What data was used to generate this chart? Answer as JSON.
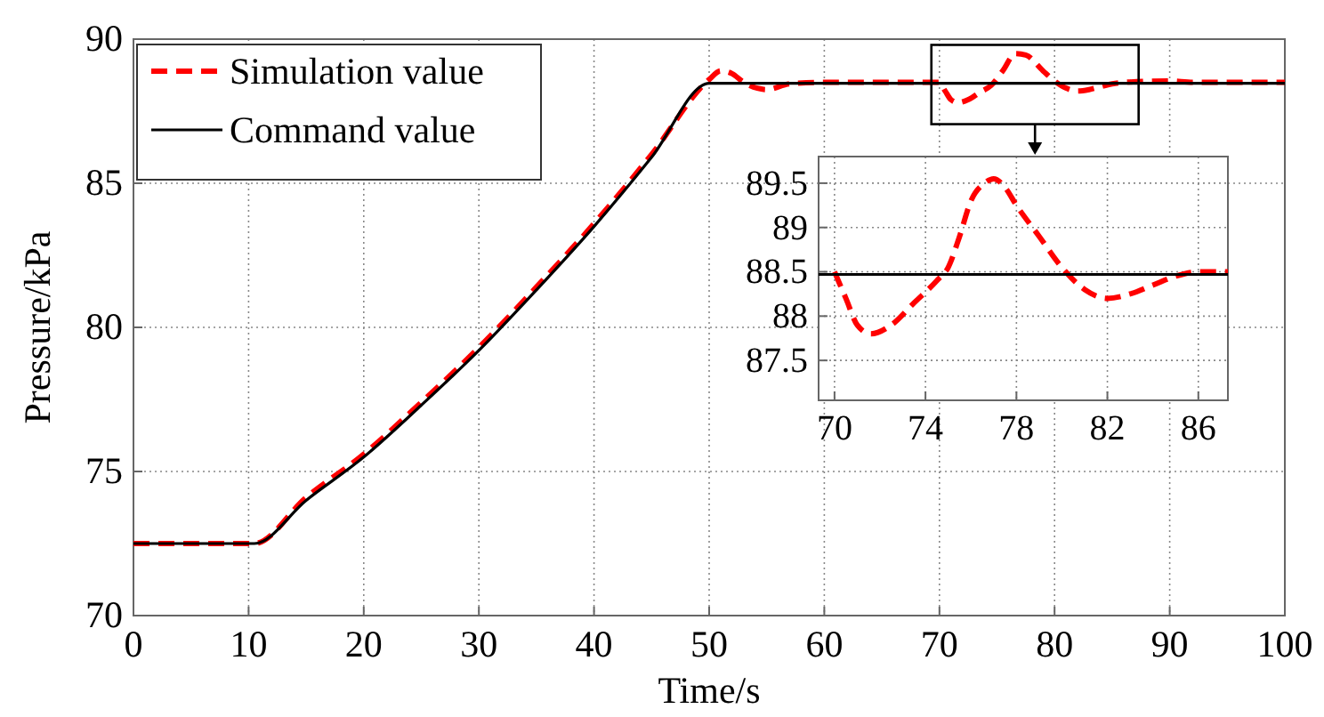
{
  "chart_data": [
    {
      "type": "line",
      "xlabel": "Time/s",
      "ylabel": "Pressure/kPa",
      "xlim": [
        0,
        100
      ],
      "ylim": [
        70,
        90
      ],
      "xticks": [
        0,
        10,
        20,
        30,
        40,
        50,
        60,
        70,
        80,
        90,
        100
      ],
      "yticks": [
        70,
        75,
        80,
        85,
        90
      ],
      "grid": true,
      "legend": "top left",
      "series": [
        {
          "name": "Simulation value",
          "color": "#ff0000",
          "line_style": "dashed",
          "x": [
            0,
            10.5,
            15,
            20,
            25,
            30,
            35,
            40,
            45,
            50,
            51,
            52,
            53,
            55,
            57,
            60,
            70,
            70.5,
            71,
            71.6,
            72.5,
            73.5,
            74.5,
            75.5,
            76.6,
            77.5,
            79,
            80,
            81,
            82,
            83,
            84,
            85,
            86,
            90,
            92,
            100
          ],
          "values": [
            72.5,
            72.5,
            74.1,
            75.6,
            77.4,
            79.3,
            81.4,
            83.6,
            86.0,
            88.6,
            88.9,
            88.8,
            88.5,
            88.25,
            88.45,
            88.5,
            88.5,
            88.2,
            87.9,
            87.8,
            87.9,
            88.15,
            88.4,
            88.9,
            89.5,
            89.45,
            88.9,
            88.55,
            88.3,
            88.2,
            88.25,
            88.35,
            88.45,
            88.5,
            88.55,
            88.5,
            88.5
          ]
        },
        {
          "name": "Command value",
          "color": "#000000",
          "line_style": "solid",
          "x": [
            0,
            10.5,
            15,
            20,
            25,
            30,
            35,
            40,
            45,
            50,
            100
          ],
          "values": [
            72.5,
            72.5,
            74.0,
            75.5,
            77.3,
            79.2,
            81.3,
            83.5,
            85.9,
            88.47,
            88.47
          ]
        }
      ]
    },
    {
      "type": "line",
      "xlim": [
        69.3,
        87.3
      ],
      "ylim": [
        87.05,
        89.8
      ],
      "xticks": [
        70,
        74,
        78,
        82,
        86
      ],
      "yticks": [
        87.5,
        88,
        88.5,
        89,
        89.5
      ],
      "grid": true,
      "series": [
        {
          "color": "#ff0000",
          "line_style": "dashed",
          "x": [
            70,
            70.5,
            71,
            71.6,
            72.5,
            73.5,
            74.5,
            75,
            75.5,
            76,
            76.6,
            77,
            77.5,
            78,
            79,
            80,
            81,
            82,
            83,
            84,
            85,
            86,
            87.3
          ],
          "values": [
            88.5,
            88.2,
            87.9,
            87.8,
            87.9,
            88.15,
            88.4,
            88.55,
            88.9,
            89.3,
            89.5,
            89.55,
            89.45,
            89.25,
            88.9,
            88.55,
            88.3,
            88.2,
            88.25,
            88.35,
            88.45,
            88.5,
            88.5
          ]
        },
        {
          "color": "#000000",
          "line_style": "solid",
          "x": [
            69.3,
            87.3
          ],
          "values": [
            88.47,
            88.47
          ]
        }
      ]
    }
  ]
}
